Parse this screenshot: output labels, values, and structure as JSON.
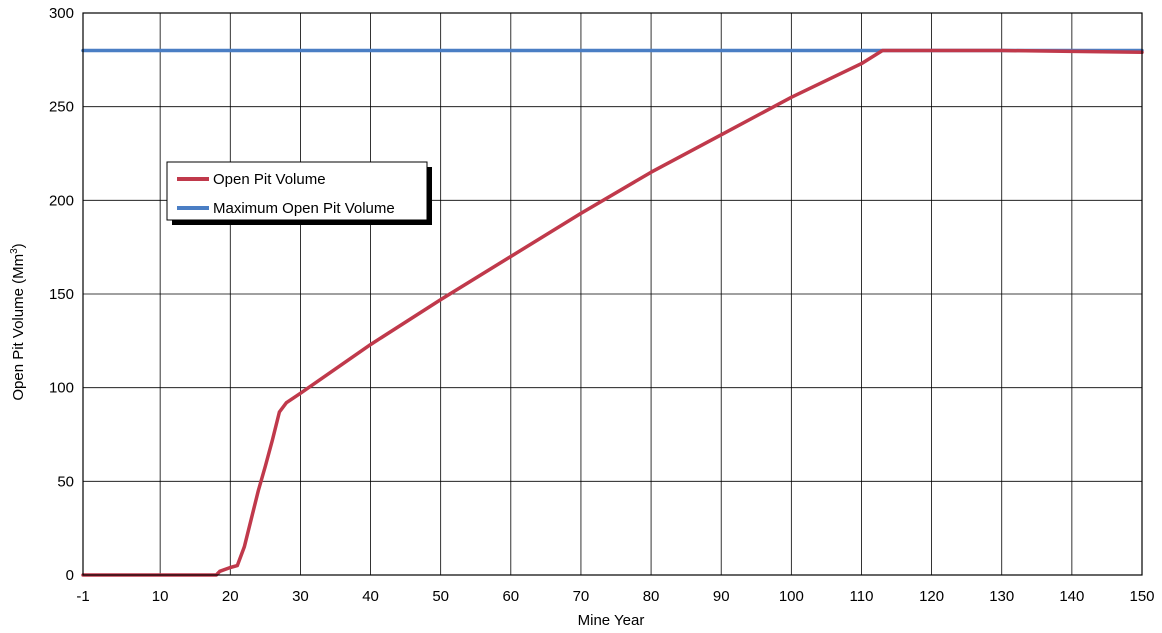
{
  "chart_data": {
    "type": "line",
    "xlabel": "Mine Year",
    "ylabel": "Open Pit Volume (Mm",
    "ylabel_superscript": "3",
    "ylabel_suffix": ")",
    "xlim": [
      -1,
      150
    ],
    "ylim": [
      0,
      300
    ],
    "x_ticks": [
      -1,
      10,
      20,
      30,
      40,
      50,
      60,
      70,
      80,
      90,
      100,
      110,
      120,
      130,
      140,
      150
    ],
    "y_ticks": [
      0,
      50,
      100,
      150,
      200,
      250,
      300
    ],
    "grid": true,
    "legend_position": "upper-left",
    "series": [
      {
        "name": "Open Pit Volume",
        "color": "#c0394b",
        "points": [
          [
            -1,
            0
          ],
          [
            10,
            0
          ],
          [
            18,
            0
          ],
          [
            18.5,
            2
          ],
          [
            20,
            4
          ],
          [
            21,
            5
          ],
          [
            22,
            15
          ],
          [
            23,
            30
          ],
          [
            24,
            45
          ],
          [
            25,
            58
          ],
          [
            26,
            72
          ],
          [
            27,
            87
          ],
          [
            28,
            92
          ],
          [
            30,
            97
          ],
          [
            40,
            123
          ],
          [
            50,
            147
          ],
          [
            60,
            170
          ],
          [
            70,
            193
          ],
          [
            80,
            215
          ],
          [
            90,
            235
          ],
          [
            100,
            255
          ],
          [
            110,
            273
          ],
          [
            113,
            280
          ],
          [
            120,
            280
          ],
          [
            130,
            280
          ],
          [
            140,
            279.5
          ],
          [
            150,
            279
          ]
        ]
      },
      {
        "name": "Maximum Open Pit Volume",
        "color": "#4a7ec4",
        "points": [
          [
            -1,
            280
          ],
          [
            150,
            280
          ]
        ]
      }
    ]
  }
}
